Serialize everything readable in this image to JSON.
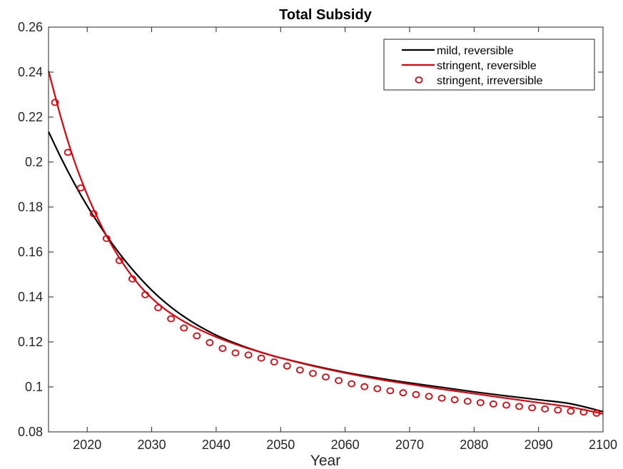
{
  "chart_data": {
    "type": "line",
    "title": "Total Subsidy",
    "xlabel": "Year",
    "ylabel": "",
    "xlim": [
      2014,
      2100
    ],
    "ylim": [
      0.08,
      0.26
    ],
    "x_ticks": [
      2020,
      2030,
      2040,
      2050,
      2060,
      2070,
      2080,
      2090,
      2100
    ],
    "x_tick_labels": [
      "2020",
      "2030",
      "2040",
      "2050",
      "2060",
      "2070",
      "2080",
      "2090",
      "2100"
    ],
    "y_ticks": [
      0.08,
      0.1,
      0.12,
      0.14,
      0.16,
      0.18,
      0.2,
      0.22,
      0.24,
      0.26
    ],
    "y_tick_labels": [
      "0.08",
      "0.1",
      "0.12",
      "0.14",
      "0.16",
      "0.18",
      "0.2",
      "0.22",
      "0.24",
      "0.26"
    ],
    "grid": false,
    "legend_position": "top-right",
    "series": [
      {
        "name": "mild, reversible",
        "style": "line",
        "color": "#000000",
        "x": [
          2014,
          2016,
          2018,
          2020,
          2022,
          2024,
          2026,
          2028,
          2030,
          2032,
          2034,
          2036,
          2038,
          2040,
          2042,
          2044,
          2046,
          2048,
          2050,
          2055,
          2060,
          2065,
          2070,
          2075,
          2080,
          2085,
          2090,
          2095,
          2100
        ],
        "values": [
          0.2135,
          0.2015,
          0.1905,
          0.1805,
          0.1715,
          0.1632,
          0.1557,
          0.149,
          0.143,
          0.1378,
          0.1333,
          0.1294,
          0.126,
          0.123,
          0.1205,
          0.1183,
          0.1163,
          0.1145,
          0.1129,
          0.1095,
          0.1065,
          0.104,
          0.1018,
          0.0998,
          0.0978,
          0.096,
          0.0943,
          0.0925,
          0.089
        ]
      },
      {
        "name": "stringent, reversible",
        "style": "line",
        "color": "#e6000a",
        "x": [
          2014,
          2016,
          2018,
          2020,
          2022,
          2024,
          2026,
          2028,
          2030,
          2032,
          2034,
          2036,
          2038,
          2040,
          2042,
          2044,
          2046,
          2048,
          2050,
          2055,
          2060,
          2065,
          2070,
          2075,
          2080,
          2085,
          2090,
          2095,
          2100
        ],
        "values": [
          0.2405,
          0.219,
          0.2005,
          0.1855,
          0.1728,
          0.162,
          0.153,
          0.1455,
          0.1395,
          0.1347,
          0.1308,
          0.1275,
          0.1247,
          0.1222,
          0.12,
          0.118,
          0.1162,
          0.1145,
          0.1129,
          0.1093,
          0.1062,
          0.1035,
          0.1012,
          0.099,
          0.097,
          0.095,
          0.093,
          0.091,
          0.088
        ]
      },
      {
        "name": "stringent, irreversible",
        "style": "markers",
        "marker": "circle",
        "color": "#e6000a",
        "x": [
          2015,
          2017,
          2019,
          2021,
          2023,
          2025,
          2027,
          2029,
          2031,
          2033,
          2035,
          2037,
          2039,
          2041,
          2043,
          2045,
          2047,
          2049,
          2051,
          2053,
          2055,
          2057,
          2059,
          2061,
          2063,
          2065,
          2067,
          2069,
          2071,
          2073,
          2075,
          2077,
          2079,
          2081,
          2083,
          2085,
          2087,
          2089,
          2091,
          2093,
          2095,
          2097,
          2099
        ],
        "values": [
          0.2265,
          0.2043,
          0.1885,
          0.177,
          0.166,
          0.1562,
          0.148,
          0.141,
          0.1352,
          0.1303,
          0.1262,
          0.1227,
          0.1197,
          0.1171,
          0.1151,
          0.1142,
          0.1128,
          0.1111,
          0.1093,
          0.1075,
          0.106,
          0.1044,
          0.1028,
          0.1014,
          0.1001,
          0.0992,
          0.0983,
          0.0974,
          0.0966,
          0.0958,
          0.095,
          0.0943,
          0.0936,
          0.093,
          0.0924,
          0.0919,
          0.0913,
          0.0907,
          0.0902,
          0.0897,
          0.0892,
          0.0888,
          0.0883
        ]
      }
    ]
  }
}
